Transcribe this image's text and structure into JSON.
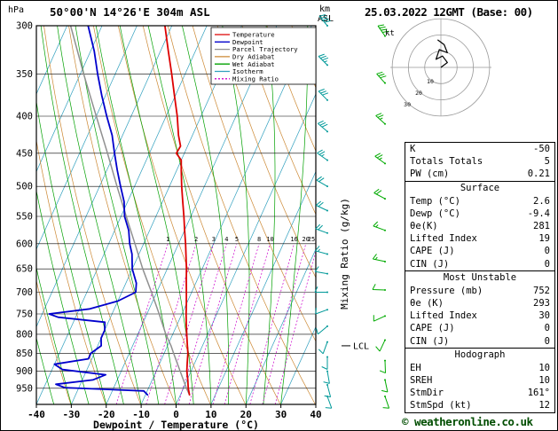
{
  "header": {
    "station": "50°00'N 14°26'E 304m ASL",
    "datetime": "25.03.2022 12GMT (Base: 00)"
  },
  "footer": {
    "copyright": "© weatheronline.co.uk"
  },
  "axis": {
    "pressure_unit": "hPa",
    "altitude_unit_line1": "km",
    "altitude_unit_line2": "ASL",
    "x_label": "Dewpoint / Temperature (°C)",
    "right_label": "Mixing Ratio (g/kg)",
    "lcl_label": "LCL",
    "pressure_ticks": [
      300,
      350,
      400,
      450,
      500,
      550,
      600,
      650,
      700,
      750,
      800,
      850,
      900,
      950
    ],
    "temp_ticks": [
      -40,
      -30,
      -20,
      -10,
      0,
      10,
      20,
      30,
      40
    ]
  },
  "colors": {
    "temperature": "#dd0000",
    "dewpoint": "#0000cc",
    "parcel": "#909090",
    "dry_adiabat": "#cc8833",
    "wet_adiabat": "#00a000",
    "isotherm": "#2f9fbe",
    "mixing_ratio": "#cc00cc",
    "barb_inner": "#009999",
    "barb_outer": "#00aa00",
    "grid": "#000000"
  },
  "legend": [
    {
      "label": "Temperature",
      "color": "#dd0000",
      "dash": ""
    },
    {
      "label": "Dewpoint",
      "color": "#0000cc",
      "dash": ""
    },
    {
      "label": "Parcel Trajectory",
      "color": "#909090",
      "dash": ""
    },
    {
      "label": "Dry Adiabat",
      "color": "#cc8833",
      "dash": ""
    },
    {
      "label": "Wet Adiabat",
      "color": "#00a000",
      "dash": ""
    },
    {
      "label": "Isotherm",
      "color": "#2f9fbe",
      "dash": ""
    },
    {
      "label": "Mixing Ratio",
      "color": "#cc00cc",
      "dash": "2 2"
    }
  ],
  "chart_data": {
    "type": "line",
    "title": "Skew-T log-P sounding 50°00'N 14°26'E 304m ASL 25.03.2022 12GMT",
    "x_axis": {
      "label": "Dewpoint / Temperature (°C)",
      "range": [
        -40,
        40
      ]
    },
    "y_axis": {
      "label": "hPa",
      "range": [
        300,
        1000
      ],
      "scale": "log"
    },
    "mixing_ratio_values": [
      1,
      2,
      3,
      4,
      5,
      8,
      10,
      16,
      20,
      25
    ],
    "lcl_pressure": 830,
    "series": [
      {
        "name": "parcel-trajectory",
        "color": "#909090",
        "width": 1.5,
        "points": [
          [
            970,
            2.6
          ],
          [
            950,
            0.9
          ],
          [
            900,
            -3.1
          ],
          [
            850,
            -7.3
          ],
          [
            830,
            -9.0
          ],
          [
            800,
            -12.0
          ],
          [
            750,
            -16.5
          ],
          [
            700,
            -21.5
          ],
          [
            650,
            -27.0
          ],
          [
            600,
            -32.5
          ],
          [
            550,
            -38.5
          ],
          [
            500,
            -45.0
          ],
          [
            450,
            -52.0
          ],
          [
            400,
            -60.0
          ],
          [
            350,
            -69.0
          ],
          [
            300,
            -79.0
          ]
        ]
      },
      {
        "name": "dewpoint",
        "color": "#0000cc",
        "width": 1.8,
        "points": [
          [
            970,
            -9.4
          ],
          [
            958,
            -11
          ],
          [
            948,
            -34
          ],
          [
            938,
            -37
          ],
          [
            925,
            -27
          ],
          [
            910,
            -24
          ],
          [
            895,
            -37
          ],
          [
            880,
            -40
          ],
          [
            865,
            -31
          ],
          [
            850,
            -31
          ],
          [
            830,
            -29
          ],
          [
            810,
            -30
          ],
          [
            790,
            -30
          ],
          [
            770,
            -31
          ],
          [
            758,
            -45
          ],
          [
            750,
            -48
          ],
          [
            738,
            -37
          ],
          [
            720,
            -30
          ],
          [
            700,
            -26
          ],
          [
            680,
            -27
          ],
          [
            650,
            -30
          ],
          [
            620,
            -32
          ],
          [
            600,
            -34
          ],
          [
            575,
            -36
          ],
          [
            550,
            -39
          ],
          [
            525,
            -41
          ],
          [
            500,
            -44
          ],
          [
            475,
            -47
          ],
          [
            450,
            -50
          ],
          [
            425,
            -53
          ],
          [
            400,
            -57
          ],
          [
            375,
            -61
          ],
          [
            350,
            -65
          ],
          [
            325,
            -69
          ],
          [
            300,
            -74
          ]
        ]
      },
      {
        "name": "temperature",
        "color": "#dd0000",
        "width": 1.8,
        "points": [
          [
            970,
            2.6
          ],
          [
            950,
            1.4
          ],
          [
            925,
            0.2
          ],
          [
            900,
            -1.2
          ],
          [
            875,
            -2.2
          ],
          [
            850,
            -3.2
          ],
          [
            825,
            -4.6
          ],
          [
            800,
            -6.0
          ],
          [
            775,
            -7.4
          ],
          [
            750,
            -8.8
          ],
          [
            725,
            -10.1
          ],
          [
            700,
            -11.5
          ],
          [
            675,
            -13.0
          ],
          [
            650,
            -14.5
          ],
          [
            625,
            -16.2
          ],
          [
            600,
            -18.0
          ],
          [
            575,
            -20.0
          ],
          [
            550,
            -22.0
          ],
          [
            525,
            -24.2
          ],
          [
            500,
            -26.5
          ],
          [
            475,
            -28.7
          ],
          [
            460,
            -30.0
          ],
          [
            450,
            -32.3
          ],
          [
            440,
            -32.0
          ],
          [
            425,
            -34.0
          ],
          [
            400,
            -36.8
          ],
          [
            375,
            -40.2
          ],
          [
            350,
            -43.8
          ],
          [
            325,
            -47.8
          ],
          [
            300,
            -52.0
          ]
        ]
      }
    ],
    "wind_barbs_inner": [
      {
        "p": 300,
        "dir": 320,
        "spd": 40
      },
      {
        "p": 340,
        "dir": 315,
        "spd": 35
      },
      {
        "p": 380,
        "dir": 315,
        "spd": 30
      },
      {
        "p": 420,
        "dir": 310,
        "spd": 28
      },
      {
        "p": 460,
        "dir": 305,
        "spd": 25
      },
      {
        "p": 500,
        "dir": 300,
        "spd": 22
      },
      {
        "p": 540,
        "dir": 295,
        "spd": 20
      },
      {
        "p": 580,
        "dir": 290,
        "spd": 18
      },
      {
        "p": 620,
        "dir": 285,
        "spd": 15
      },
      {
        "p": 660,
        "dir": 280,
        "spd": 12
      },
      {
        "p": 700,
        "dir": 270,
        "spd": 10
      },
      {
        "p": 740,
        "dir": 250,
        "spd": 8
      },
      {
        "p": 780,
        "dir": 230,
        "spd": 8
      },
      {
        "p": 820,
        "dir": 200,
        "spd": 10
      },
      {
        "p": 860,
        "dir": 180,
        "spd": 12
      },
      {
        "p": 900,
        "dir": 170,
        "spd": 12
      },
      {
        "p": 940,
        "dir": 165,
        "spd": 12
      },
      {
        "p": 975,
        "dir": 160,
        "spd": 10
      }
    ],
    "wind_barbs_outer": [
      {
        "p": 310,
        "dir": 325,
        "spd": 38
      },
      {
        "p": 360,
        "dir": 318,
        "spd": 32
      },
      {
        "p": 410,
        "dir": 312,
        "spd": 27
      },
      {
        "p": 465,
        "dir": 306,
        "spd": 24
      },
      {
        "p": 520,
        "dir": 298,
        "spd": 20
      },
      {
        "p": 575,
        "dir": 290,
        "spd": 17
      },
      {
        "p": 635,
        "dir": 282,
        "spd": 14
      },
      {
        "p": 695,
        "dir": 272,
        "spd": 11
      },
      {
        "p": 755,
        "dir": 245,
        "spd": 9
      },
      {
        "p": 815,
        "dir": 205,
        "spd": 10
      },
      {
        "p": 870,
        "dir": 178,
        "spd": 12
      },
      {
        "p": 925,
        "dir": 168,
        "spd": 12
      },
      {
        "p": 975,
        "dir": 161,
        "spd": 11
      }
    ]
  },
  "hodograph": {
    "unit_label": "kt",
    "ring_values": [
      10,
      20,
      30
    ],
    "trace_kt": [
      [
        0,
        0
      ],
      [
        4,
        3
      ],
      [
        1,
        7
      ],
      [
        -3,
        5
      ],
      [
        -1,
        11
      ],
      [
        4,
        9
      ],
      [
        2,
        14
      ],
      [
        -2,
        17
      ]
    ]
  },
  "panel": {
    "indices": {
      "rows": [
        {
          "label": "K",
          "value": "-50"
        },
        {
          "label": "Totals Totals",
          "value": "5"
        },
        {
          "label": "PW (cm)",
          "value": "0.21"
        }
      ]
    },
    "surface": {
      "title": "Surface",
      "rows": [
        {
          "label": "Temp (°C)",
          "value": "2.6"
        },
        {
          "label": "Dewp (°C)",
          "value": "-9.4"
        },
        {
          "label": "θe(K)",
          "value": "281"
        },
        {
          "label": "Lifted Index",
          "value": "19"
        },
        {
          "label": "CAPE (J)",
          "value": "0"
        },
        {
          "label": "CIN (J)",
          "value": "0"
        }
      ]
    },
    "most_unstable": {
      "title": "Most Unstable",
      "rows": [
        {
          "label": "Pressure (mb)",
          "value": "752"
        },
        {
          "label": "θe (K)",
          "value": "293"
        },
        {
          "label": "Lifted Index",
          "value": "30"
        },
        {
          "label": "CAPE (J)",
          "value": "0"
        },
        {
          "label": "CIN (J)",
          "value": "0"
        }
      ]
    },
    "hodograph_stats": {
      "title": "Hodograph",
      "rows": [
        {
          "label": "EH",
          "value": "10"
        },
        {
          "label": "SREH",
          "value": "10"
        },
        {
          "label": "StmDir",
          "value": "161°"
        },
        {
          "label": "StmSpd (kt)",
          "value": "12"
        }
      ]
    }
  }
}
